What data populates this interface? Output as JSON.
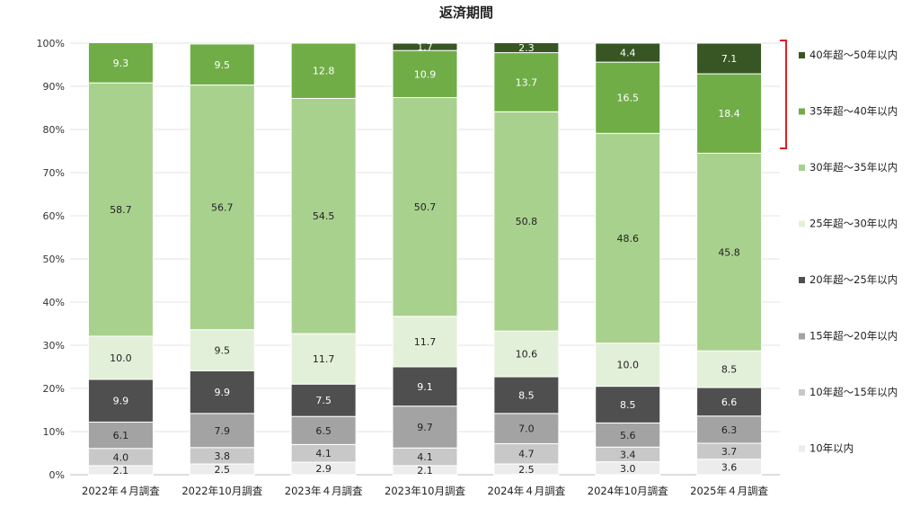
{
  "chart_data": {
    "type": "bar",
    "stacked": true,
    "percent_stacked": true,
    "title": "返済期間",
    "xlabel": "",
    "ylabel": "",
    "ylim": [
      0,
      100
    ],
    "y_ticks": [
      "0%",
      "10%",
      "20%",
      "30%",
      "40%",
      "50%",
      "60%",
      "70%",
      "80%",
      "90%",
      "100%"
    ],
    "grid": true,
    "legend_position": "right",
    "categories": [
      "2022年４月調査",
      "2022年10月調査",
      "2023年４月調査",
      "2023年10月調査",
      "2024年４月調査",
      "2024年10月調査",
      "2025年４月調査"
    ],
    "series": [
      {
        "name": "10年以内",
        "color": "#ececec",
        "label_color": "#222222",
        "values": [
          2.1,
          2.5,
          2.9,
          2.1,
          2.5,
          3.0,
          3.6
        ]
      },
      {
        "name": "10年超～15年以内",
        "color": "#c8c8c8",
        "label_color": "#222222",
        "values": [
          4.0,
          3.8,
          4.1,
          4.1,
          4.7,
          3.4,
          3.7
        ]
      },
      {
        "name": "15年超～20年以内",
        "color": "#a3a3a3",
        "label_color": "#222222",
        "values": [
          6.1,
          7.9,
          6.5,
          9.7,
          7.0,
          5.6,
          6.3
        ]
      },
      {
        "name": "20年超～25年以内",
        "color": "#4f4f4f",
        "label_color": "#ffffff",
        "values": [
          9.9,
          9.9,
          7.5,
          9.1,
          8.5,
          8.5,
          6.6
        ]
      },
      {
        "name": "25年超～30年以内",
        "color": "#e3f0d9",
        "label_color": "#222222",
        "values": [
          10.0,
          9.5,
          11.7,
          11.7,
          10.6,
          10.0,
          8.5
        ]
      },
      {
        "name": "30年超～35年以内",
        "color": "#a9d18e",
        "label_color": "#222222",
        "values": [
          58.7,
          56.7,
          54.5,
          50.7,
          50.8,
          48.6,
          45.8
        ]
      },
      {
        "name": "35年超～40年以内",
        "color": "#70ad47",
        "label_color": "#ffffff",
        "values": [
          9.3,
          9.5,
          12.8,
          10.9,
          13.7,
          16.5,
          18.4
        ]
      },
      {
        "name": "40年超～50年以内",
        "color": "#375623",
        "label_color": "#ffffff",
        "values": [
          null,
          null,
          null,
          1.7,
          2.3,
          4.4,
          7.1
        ]
      }
    ],
    "bracket_color": "#e02020"
  }
}
